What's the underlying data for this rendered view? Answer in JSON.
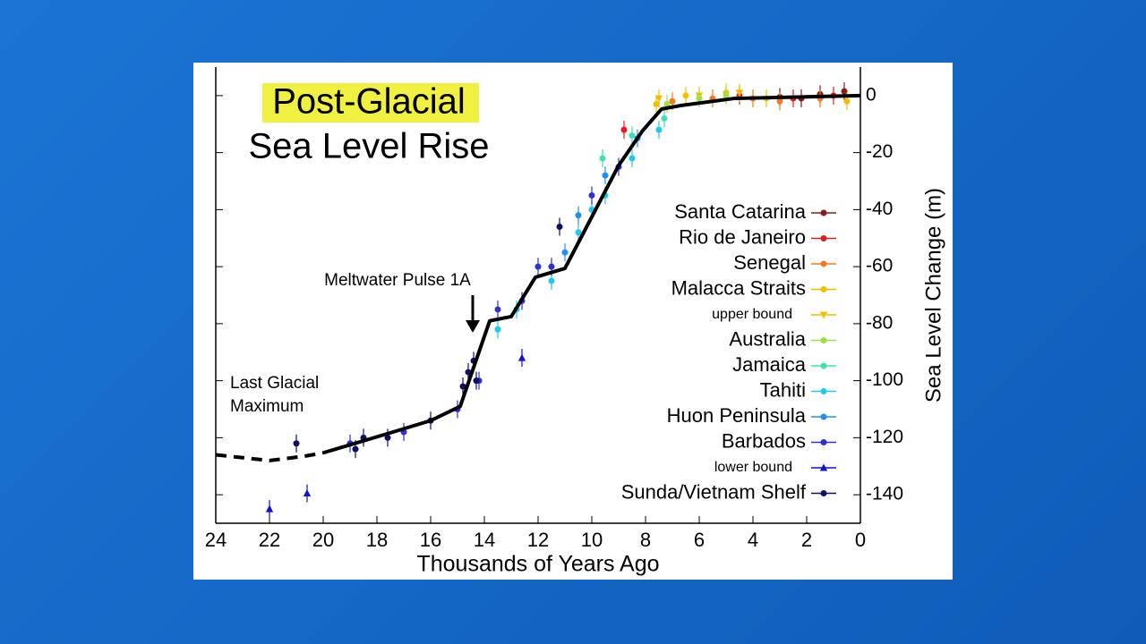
{
  "chart_data": {
    "type": "scatter",
    "title": "Post-Glacial",
    "subtitle": "Sea Level Rise",
    "x_label": "Thousands of Years Ago",
    "y_label": "Sea Level Change (m)",
    "annotations": [
      [
        "Meltwater Pulse 1A"
      ],
      [
        "Last Glacial",
        "Maximum"
      ]
    ],
    "xlim": [
      24,
      0
    ],
    "xticks": [
      24,
      22,
      20,
      18,
      16,
      14,
      12,
      10,
      8,
      6,
      4,
      2,
      0
    ],
    "ylim": [
      -150,
      10
    ],
    "yticks": [
      0,
      -20,
      -40,
      -60,
      -80,
      -100,
      -120,
      -140
    ],
    "trend": {
      "color": "#000000",
      "dashed": {
        "x": [
          24,
          22,
          20.7,
          20
        ],
        "values": [
          -126,
          -128,
          -126.5,
          -125.3
        ]
      },
      "solid": {
        "x": [
          20,
          17.4,
          16,
          14.9,
          13.8,
          13,
          12.1,
          11,
          9,
          8.1,
          7.4,
          6.7,
          4.7,
          0
        ],
        "values": [
          -125.3,
          -118,
          -114,
          -109,
          -79,
          -77.5,
          -63.7,
          -60.6,
          -24.5,
          -12.2,
          -4.7,
          -3.5,
          -1,
          0
        ]
      }
    },
    "series": [
      {
        "name": "Santa Catarina",
        "color": "#8b1a1a",
        "marker": "circle",
        "x": [
          3,
          2.2,
          1.5,
          0.6
        ],
        "values": [
          -0.5,
          -1,
          0.5,
          1.5
        ]
      },
      {
        "name": "Rio de Janeiro",
        "color": "#e02020",
        "marker": "circle",
        "x": [
          8.8,
          4.5,
          2.5,
          1
        ],
        "values": [
          -12,
          0,
          -1,
          0
        ]
      },
      {
        "name": "Senegal",
        "color": "#f07a20",
        "marker": "circle",
        "x": [
          7,
          5.5,
          4,
          3,
          1.5
        ],
        "values": [
          -2,
          -1,
          -1,
          -2,
          -1
        ]
      },
      {
        "name": "Malacca Straits",
        "color": "#f0c000",
        "marker": "circle",
        "x": [
          7.6,
          6.5,
          5,
          3.5,
          0.5
        ],
        "values": [
          -3,
          0,
          1,
          -1,
          -2
        ]
      },
      {
        "name": "upper bound",
        "color": "#f0c000",
        "marker": "triangle-down",
        "x": [
          7.5,
          6,
          4.5
        ],
        "values": [
          -1,
          0,
          1
        ]
      },
      {
        "name": "Australia",
        "color": "#a0e040",
        "marker": "circle",
        "x": [
          7.2,
          6,
          5
        ],
        "values": [
          -3,
          -1,
          0
        ]
      },
      {
        "name": "Jamaica",
        "color": "#40e0b0",
        "marker": "circle",
        "x": [
          9.6,
          8.5,
          7.3
        ],
        "values": [
          -22,
          -14,
          -8
        ]
      },
      {
        "name": "Tahiti",
        "color": "#20c8f0",
        "marker": "circle",
        "x": [
          13.5,
          12.8,
          11.5,
          10.5,
          10,
          9.5,
          8.5,
          7.5
        ],
        "values": [
          -82,
          -75,
          -65,
          -48,
          -40,
          -35,
          -22,
          -12
        ]
      },
      {
        "name": "Huon Peninsula",
        "color": "#2090f0",
        "marker": "circle",
        "x": [
          11,
          10.5,
          9.5,
          8.3
        ],
        "values": [
          -55,
          -42,
          -28,
          -15
        ]
      },
      {
        "name": "Barbados",
        "color": "#3030d0",
        "marker": "circle",
        "x": [
          19,
          17,
          15,
          14.2,
          13.5,
          12.6,
          12,
          11.5,
          10,
          9
        ],
        "values": [
          -122,
          -118,
          -110,
          -100,
          -75,
          -72,
          -60,
          -60,
          -35,
          -25
        ]
      },
      {
        "name": "lower bound",
        "color": "#1010d0",
        "marker": "triangle-up",
        "x": [
          22,
          20.6,
          12.6
        ],
        "values": [
          -145,
          -139.5,
          -92
        ]
      },
      {
        "name": "Sunda/Vietnam Shelf",
        "color": "#101060",
        "marker": "circle",
        "x": [
          21,
          18.8,
          18.5,
          17.6,
          16,
          14.8,
          14.6,
          14.4,
          14.3,
          11.2
        ],
        "values": [
          -122,
          -124,
          -120,
          -120,
          -114,
          -102,
          -97,
          -93,
          -100,
          -46
        ]
      }
    ]
  }
}
